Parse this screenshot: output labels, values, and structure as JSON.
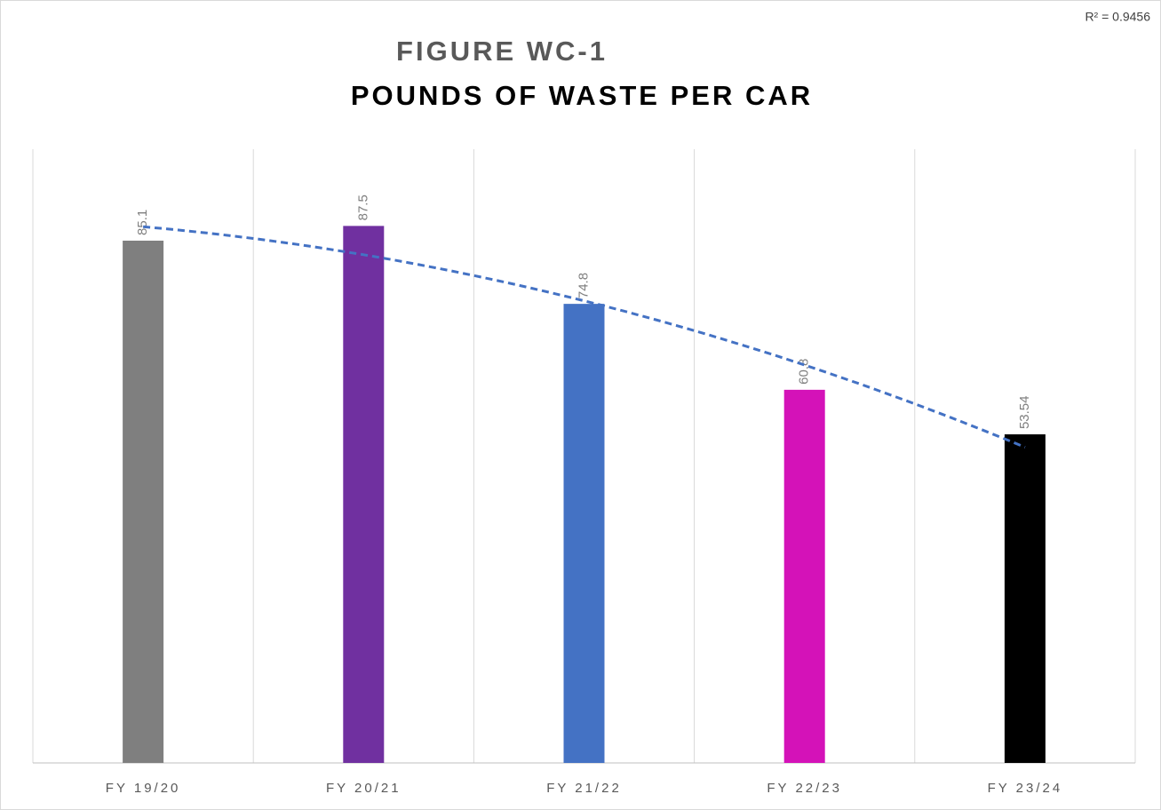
{
  "chart_data": {
    "type": "bar",
    "title": "FIGURE WC-1",
    "subtitle": "POUNDS OF WASTE PER CAR",
    "categories": [
      "FY 19/20",
      "FY 20/21",
      "FY 21/22",
      "FY 22/23",
      "FY 23/24"
    ],
    "values": [
      85.1,
      87.5,
      74.8,
      60.8,
      53.54
    ],
    "colors": [
      "#7f7f7f",
      "#7030a0",
      "#4472c4",
      "#d412b8",
      "#000000"
    ],
    "ylim": [
      0,
      100
    ],
    "grid": true,
    "trendline": {
      "type": "polynomial",
      "order": 2,
      "color": "#4472c4"
    },
    "annotations": [
      "R² = 0.9456"
    ]
  }
}
